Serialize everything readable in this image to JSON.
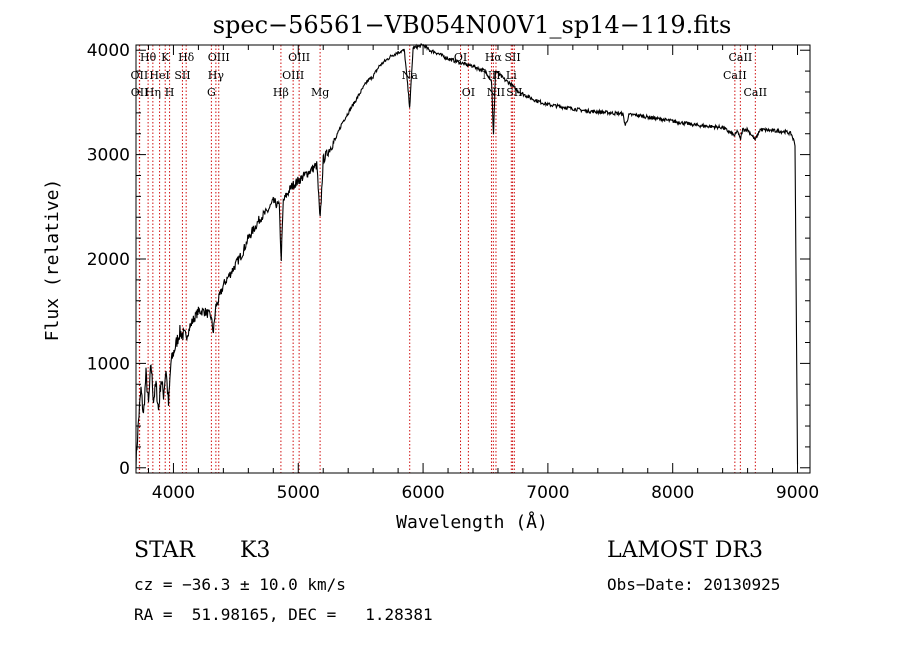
{
  "chart_data": {
    "type": "line",
    "title": "spec−56561−VB054N00V1_sp14−119.fits",
    "xlabel": "Wavelength (Å)",
    "ylabel": "Flux (relative)",
    "xlim": [
      3700,
      9100
    ],
    "ylim": [
      -50,
      4050
    ],
    "xticks": [
      4000,
      5000,
      6000,
      7000,
      8000,
      9000
    ],
    "yticks": [
      0,
      1000,
      2000,
      3000,
      4000
    ],
    "x": [
      3700,
      3720,
      3740,
      3760,
      3780,
      3800,
      3820,
      3840,
      3860,
      3880,
      3900,
      3920,
      3940,
      3960,
      3980,
      4000,
      4050,
      4100,
      4150,
      4200,
      4250,
      4300,
      4320,
      4340,
      4360,
      4400,
      4450,
      4500,
      4550,
      4600,
      4650,
      4700,
      4750,
      4800,
      4850,
      4862,
      4880,
      4900,
      4950,
      5000,
      5050,
      5100,
      5150,
      5175,
      5200,
      5250,
      5300,
      5350,
      5400,
      5450,
      5500,
      5550,
      5600,
      5650,
      5700,
      5750,
      5800,
      5850,
      5893,
      5920,
      5950,
      6000,
      6050,
      6100,
      6150,
      6200,
      6250,
      6300,
      6350,
      6400,
      6450,
      6500,
      6550,
      6563,
      6580,
      6600,
      6650,
      6700,
      6750,
      6800,
      6900,
      7000,
      7100,
      7200,
      7300,
      7400,
      7500,
      7600,
      7620,
      7650,
      7700,
      7800,
      7900,
      8000,
      8100,
      8200,
      8300,
      8400,
      8498,
      8520,
      8542,
      8560,
      8600,
      8662,
      8700,
      8800,
      8900,
      8950,
      8980,
      9000
    ],
    "values": [
      50,
      450,
      750,
      500,
      900,
      600,
      1000,
      650,
      800,
      550,
      850,
      700,
      950,
      600,
      1000,
      1100,
      1300,
      1250,
      1400,
      1500,
      1500,
      1450,
      1300,
      1550,
      1600,
      1750,
      1850,
      1950,
      2050,
      2200,
      2300,
      2400,
      2450,
      2550,
      2500,
      1950,
      2550,
      2600,
      2700,
      2750,
      2800,
      2850,
      2900,
      2350,
      2950,
      3050,
      3150,
      3300,
      3400,
      3500,
      3600,
      3700,
      3750,
      3850,
      3900,
      3950,
      3980,
      4000,
      3450,
      4020,
      4030,
      4050,
      4000,
      3980,
      3950,
      3920,
      3900,
      3880,
      3860,
      3850,
      3820,
      3800,
      3700,
      3150,
      3800,
      3780,
      3720,
      3680,
      3620,
      3580,
      3520,
      3480,
      3460,
      3440,
      3420,
      3410,
      3400,
      3390,
      3280,
      3380,
      3380,
      3360,
      3340,
      3320,
      3300,
      3280,
      3270,
      3260,
      3180,
      3230,
      3140,
      3240,
      3240,
      3140,
      3240,
      3230,
      3220,
      3200,
      3100,
      30
    ],
    "lines": [
      {
        "name": "Hθ",
        "x": 3797,
        "row": 0
      },
      {
        "name": "K",
        "x": 3934,
        "row": 0
      },
      {
        "name": "Hδ",
        "x": 4102,
        "row": 0
      },
      {
        "name": "OIII",
        "x": 4363,
        "row": 0
      },
      {
        "name": "OIII",
        "x": 5007,
        "row": 0
      },
      {
        "name": "OI",
        "x": 6300,
        "row": 0
      },
      {
        "name": "Hα",
        "x": 6563,
        "row": 0
      },
      {
        "name": "SII",
        "x": 6717,
        "row": 0
      },
      {
        "name": "CaII",
        "x": 8542,
        "row": 0
      },
      {
        "name": "OII",
        "x": 3727,
        "row": 1
      },
      {
        "name": "HeI",
        "x": 3889,
        "row": 1
      },
      {
        "name": "SII",
        "x": 4072,
        "row": 1
      },
      {
        "name": "Hγ",
        "x": 4340,
        "row": 1
      },
      {
        "name": "OIII",
        "x": 4959,
        "row": 1
      },
      {
        "name": "Na",
        "x": 5893,
        "row": 1
      },
      {
        "name": "NII",
        "x": 6548,
        "row": 1
      },
      {
        "name": "Li",
        "x": 6707,
        "row": 1
      },
      {
        "name": "CaII",
        "x": 8498,
        "row": 1
      },
      {
        "name": "OII",
        "x": 3729,
        "row": 2
      },
      {
        "name": "Hη",
        "x": 3835,
        "row": 2
      },
      {
        "name": "H",
        "x": 3969,
        "row": 2
      },
      {
        "name": "G",
        "x": 4304,
        "row": 2
      },
      {
        "name": "Hβ",
        "x": 4861,
        "row": 2
      },
      {
        "name": "Mg",
        "x": 5175,
        "row": 2
      },
      {
        "name": "OI",
        "x": 6363,
        "row": 2
      },
      {
        "name": "NII",
        "x": 6584,
        "row": 2
      },
      {
        "name": "SII",
        "x": 6731,
        "row": 2
      },
      {
        "name": "CaII",
        "x": 8662,
        "row": 2
      }
    ]
  },
  "info": {
    "object_class": "STAR",
    "subclass": "K3",
    "survey": "LAMOST DR3",
    "cz": "cz = −36.3 ± 10.0 km/s",
    "obs_date": "Obs−Date: 20130925",
    "coords": "RA =  51.98165, DEC =   1.28381"
  }
}
